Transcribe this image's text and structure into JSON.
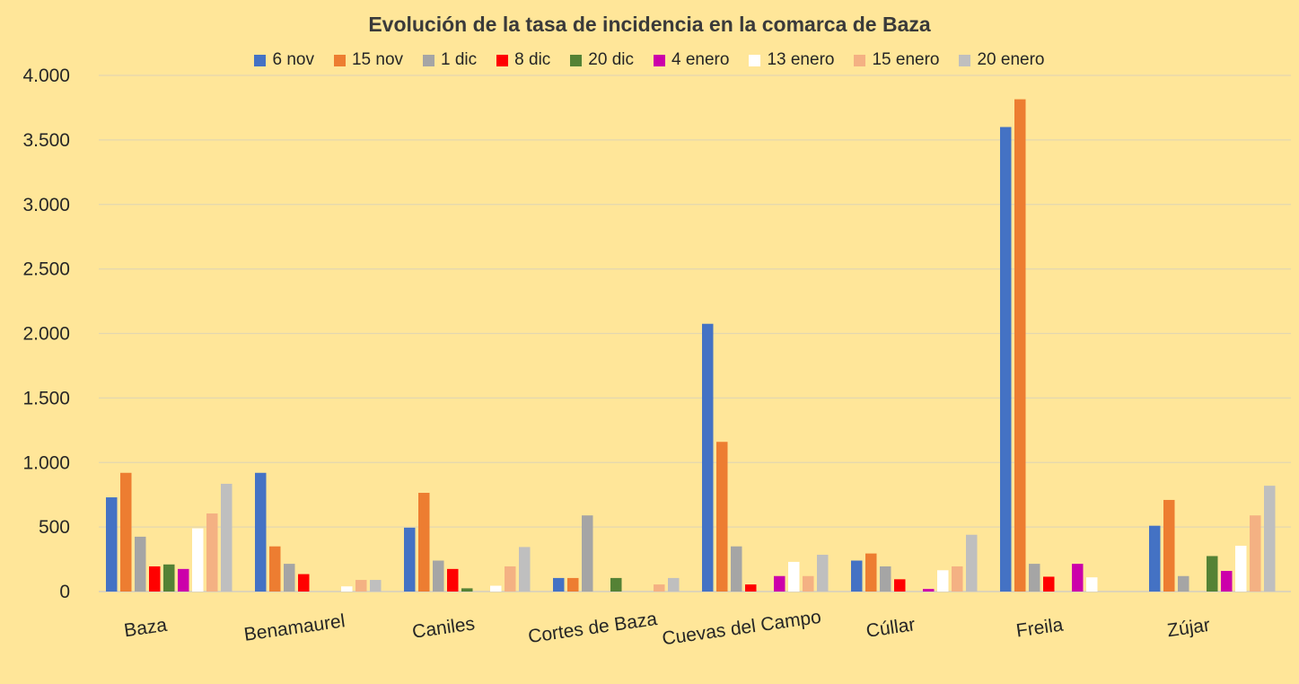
{
  "chart_data": {
    "type": "bar",
    "title": "Evolución de la tasa de incidencia en la comarca de Baza",
    "categories": [
      "Baza",
      "Benamaurel",
      "Caniles",
      "Cortes de Baza",
      "Cuevas del Campo",
      "Cúllar",
      "Freila",
      "Zújar"
    ],
    "ylim": [
      0,
      4000
    ],
    "yticks": [
      0,
      500,
      1000,
      1500,
      2000,
      2500,
      3000,
      3500,
      4000
    ],
    "ytick_labels": [
      "0",
      "500",
      "1.000",
      "1.500",
      "2.000",
      "2.500",
      "3.000",
      "3.500",
      "4.000"
    ],
    "grid": true,
    "legend_position": "top",
    "series": [
      {
        "name": "6 nov",
        "color": "#4472c4",
        "values": [
          730,
          920,
          495,
          105,
          2075,
          240,
          3600,
          510
        ]
      },
      {
        "name": "15 nov",
        "color": "#ed7d31",
        "values": [
          920,
          350,
          765,
          105,
          1160,
          295,
          3815,
          710
        ]
      },
      {
        "name": "1 dic",
        "color": "#a5a5a5",
        "values": [
          425,
          215,
          240,
          590,
          350,
          195,
          215,
          120
        ]
      },
      {
        "name": "8 dic",
        "color": "#ff0000",
        "values": [
          195,
          135,
          175,
          0,
          55,
          95,
          115,
          0
        ]
      },
      {
        "name": "20 dic",
        "color": "#548235",
        "values": [
          210,
          0,
          25,
          105,
          0,
          0,
          0,
          275
        ]
      },
      {
        "name": "4 enero",
        "color": "#cc00aa",
        "values": [
          175,
          0,
          0,
          0,
          120,
          20,
          215,
          160
        ]
      },
      {
        "name": "13 enero",
        "color": "#ffffff",
        "values": [
          490,
          40,
          45,
          0,
          230,
          165,
          110,
          355
        ]
      },
      {
        "name": "15 enero",
        "color": "#f4b183",
        "values": [
          605,
          90,
          195,
          55,
          120,
          195,
          0,
          590
        ]
      },
      {
        "name": "20 enero",
        "color": "#bfbfbf",
        "values": [
          835,
          90,
          345,
          105,
          285,
          440,
          0,
          820
        ]
      }
    ]
  }
}
